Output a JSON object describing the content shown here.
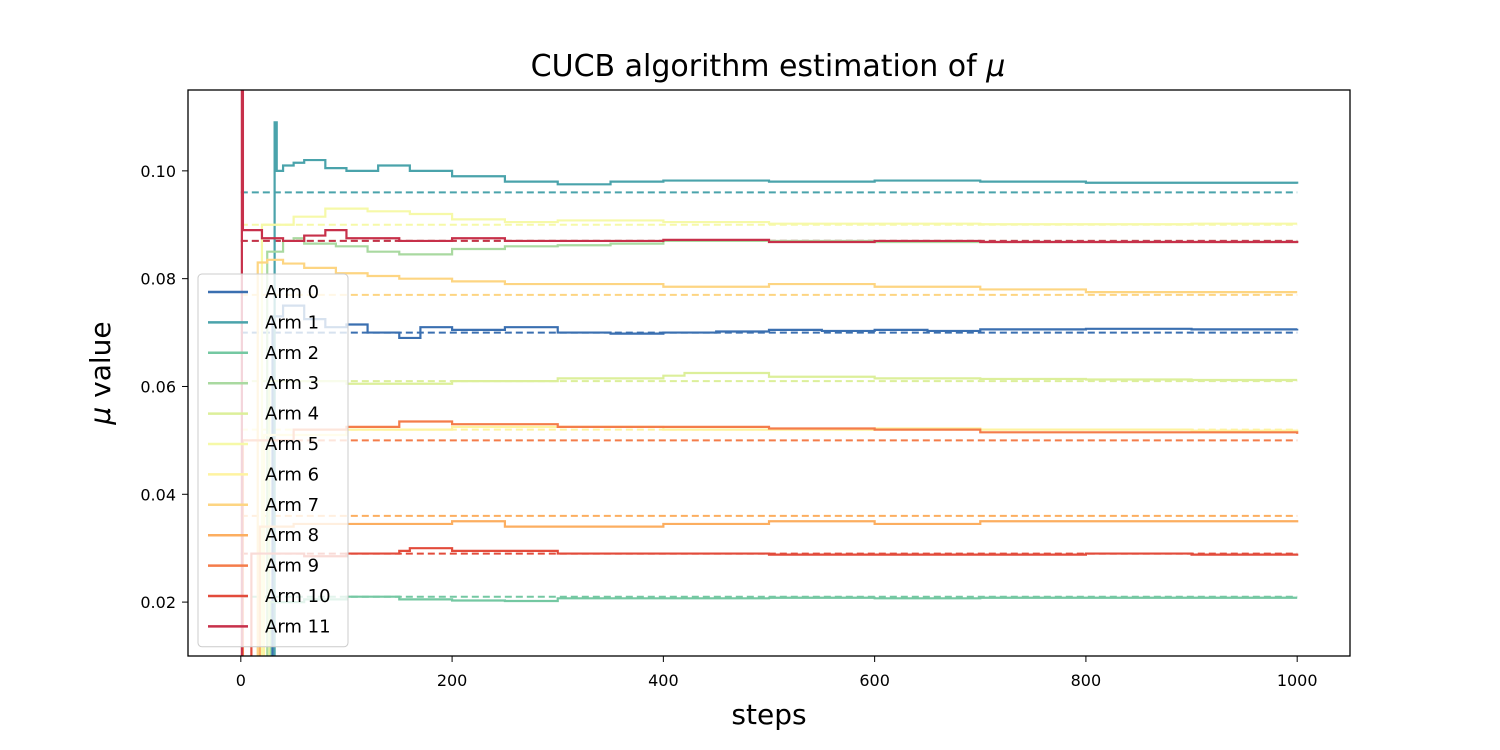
{
  "chart_data": {
    "type": "line",
    "title_prefix": "CUCB algorithm estimation of ",
    "title_symbol": "μ",
    "xlabel": "steps",
    "ylabel_symbol": "μ",
    "ylabel_text": " value",
    "xlim": [
      -50,
      1050
    ],
    "ylim": [
      0.01,
      0.115
    ],
    "xticks": [
      0,
      200,
      400,
      600,
      800,
      1000
    ],
    "yticks": [
      0.02,
      0.04,
      0.06,
      0.08,
      0.1
    ],
    "ytick_labels": [
      "0.02",
      "0.04",
      "0.06",
      "0.08",
      "0.10"
    ],
    "grid": false,
    "legend_position": "lower-left",
    "series": [
      {
        "name": "Arm 0",
        "color": "#3a6fb0",
        "true_mu": 0.07,
        "first_step": 30,
        "points": [
          [
            30,
            0.073
          ],
          [
            40,
            0.075
          ],
          [
            60,
            0.0725
          ],
          [
            80,
            0.071
          ],
          [
            100,
            0.0715
          ],
          [
            120,
            0.07
          ],
          [
            150,
            0.069
          ],
          [
            170,
            0.071
          ],
          [
            200,
            0.0705
          ],
          [
            250,
            0.071
          ],
          [
            300,
            0.07
          ],
          [
            350,
            0.0698
          ],
          [
            400,
            0.07
          ],
          [
            450,
            0.0702
          ],
          [
            500,
            0.0705
          ],
          [
            550,
            0.0703
          ],
          [
            600,
            0.0705
          ],
          [
            650,
            0.0703
          ],
          [
            700,
            0.0706
          ],
          [
            800,
            0.0707
          ],
          [
            900,
            0.0706
          ],
          [
            1000,
            0.0707
          ]
        ]
      },
      {
        "name": "Arm 1",
        "color": "#4aa3ab",
        "true_mu": 0.096,
        "first_step": 32,
        "points": [
          [
            32,
            0.109
          ],
          [
            34,
            0.1
          ],
          [
            40,
            0.101
          ],
          [
            50,
            0.1015
          ],
          [
            60,
            0.102
          ],
          [
            80,
            0.1005
          ],
          [
            100,
            0.1
          ],
          [
            130,
            0.101
          ],
          [
            160,
            0.1
          ],
          [
            200,
            0.099
          ],
          [
            250,
            0.098
          ],
          [
            300,
            0.0975
          ],
          [
            350,
            0.098
          ],
          [
            400,
            0.0982
          ],
          [
            500,
            0.098
          ],
          [
            600,
            0.0982
          ],
          [
            700,
            0.098
          ],
          [
            800,
            0.0978
          ],
          [
            900,
            0.0978
          ],
          [
            1000,
            0.0976
          ]
        ]
      },
      {
        "name": "Arm 2",
        "color": "#74c8a2",
        "true_mu": 0.021,
        "first_step": 28,
        "points": [
          [
            28,
            0.02
          ],
          [
            60,
            0.0205
          ],
          [
            100,
            0.021
          ],
          [
            150,
            0.0205
          ],
          [
            200,
            0.0203
          ],
          [
            250,
            0.0202
          ],
          [
            300,
            0.0207
          ],
          [
            400,
            0.0207
          ],
          [
            500,
            0.0208
          ],
          [
            600,
            0.0207
          ],
          [
            700,
            0.0208
          ],
          [
            800,
            0.0208
          ],
          [
            900,
            0.0208
          ],
          [
            1000,
            0.0208
          ]
        ]
      },
      {
        "name": "Arm 3",
        "color": "#a9d9a0",
        "true_mu": 0.087,
        "first_step": 25,
        "points": [
          [
            25,
            0.085
          ],
          [
            40,
            0.087
          ],
          [
            50,
            0.0875
          ],
          [
            60,
            0.0865
          ],
          [
            90,
            0.086
          ],
          [
            120,
            0.085
          ],
          [
            150,
            0.0845
          ],
          [
            200,
            0.0855
          ],
          [
            250,
            0.086
          ],
          [
            300,
            0.0862
          ],
          [
            350,
            0.0865
          ],
          [
            400,
            0.087
          ],
          [
            500,
            0.087
          ],
          [
            600,
            0.0868
          ],
          [
            700,
            0.0868
          ],
          [
            800,
            0.0868
          ],
          [
            900,
            0.0868
          ],
          [
            1000,
            0.0867
          ]
        ]
      },
      {
        "name": "Arm 4",
        "color": "#dcef9a",
        "true_mu": 0.061,
        "first_step": 27,
        "points": [
          [
            27,
            0.061
          ],
          [
            100,
            0.0605
          ],
          [
            200,
            0.061
          ],
          [
            300,
            0.0615
          ],
          [
            400,
            0.062
          ],
          [
            420,
            0.0625
          ],
          [
            500,
            0.0618
          ],
          [
            600,
            0.0615
          ],
          [
            700,
            0.0614
          ],
          [
            800,
            0.0613
          ],
          [
            900,
            0.0612
          ],
          [
            1000,
            0.0612
          ]
        ]
      },
      {
        "name": "Arm 5",
        "color": "#f6f9a8",
        "true_mu": 0.09,
        "first_step": 20,
        "points": [
          [
            20,
            0.09
          ],
          [
            50,
            0.0915
          ],
          [
            80,
            0.093
          ],
          [
            120,
            0.0925
          ],
          [
            160,
            0.092
          ],
          [
            200,
            0.091
          ],
          [
            250,
            0.0905
          ],
          [
            300,
            0.0908
          ],
          [
            400,
            0.0905
          ],
          [
            500,
            0.0902
          ],
          [
            600,
            0.0902
          ],
          [
            700,
            0.0901
          ],
          [
            800,
            0.0901
          ],
          [
            900,
            0.0902
          ],
          [
            1000,
            0.0902
          ]
        ]
      },
      {
        "name": "Arm 6",
        "color": "#fef3a0",
        "true_mu": 0.052,
        "first_step": 22,
        "points": [
          [
            22,
            0.051
          ],
          [
            100,
            0.052
          ],
          [
            200,
            0.0525
          ],
          [
            300,
            0.0525
          ],
          [
            400,
            0.052
          ],
          [
            500,
            0.052
          ],
          [
            600,
            0.0522
          ],
          [
            700,
            0.052
          ],
          [
            800,
            0.052
          ],
          [
            900,
            0.0518
          ],
          [
            1000,
            0.052
          ]
        ]
      },
      {
        "name": "Arm 7",
        "color": "#fdd582",
        "true_mu": 0.077,
        "first_step": 16,
        "points": [
          [
            16,
            0.083
          ],
          [
            25,
            0.0835
          ],
          [
            40,
            0.0828
          ],
          [
            60,
            0.082
          ],
          [
            90,
            0.081
          ],
          [
            120,
            0.0805
          ],
          [
            150,
            0.08
          ],
          [
            200,
            0.0795
          ],
          [
            250,
            0.079
          ],
          [
            300,
            0.079
          ],
          [
            400,
            0.0785
          ],
          [
            500,
            0.079
          ],
          [
            600,
            0.0785
          ],
          [
            700,
            0.078
          ],
          [
            800,
            0.0775
          ],
          [
            900,
            0.0775
          ],
          [
            1000,
            0.0775
          ]
        ]
      },
      {
        "name": "Arm 8",
        "color": "#fcae60",
        "true_mu": 0.036,
        "first_step": 18,
        "points": [
          [
            18,
            0.034
          ],
          [
            50,
            0.0345
          ],
          [
            100,
            0.0345
          ],
          [
            150,
            0.0345
          ],
          [
            200,
            0.035
          ],
          [
            250,
            0.034
          ],
          [
            300,
            0.034
          ],
          [
            400,
            0.0345
          ],
          [
            500,
            0.035
          ],
          [
            600,
            0.0345
          ],
          [
            700,
            0.035
          ],
          [
            800,
            0.035
          ],
          [
            900,
            0.035
          ],
          [
            1000,
            0.0352
          ]
        ]
      },
      {
        "name": "Arm 9",
        "color": "#f47c4a",
        "true_mu": 0.05,
        "first_step": 2,
        "points": [
          [
            2,
            0.05
          ],
          [
            50,
            0.052
          ],
          [
            100,
            0.0525
          ],
          [
            150,
            0.0535
          ],
          [
            200,
            0.053
          ],
          [
            300,
            0.0525
          ],
          [
            400,
            0.0525
          ],
          [
            500,
            0.0522
          ],
          [
            600,
            0.052
          ],
          [
            700,
            0.0515
          ],
          [
            800,
            0.0515
          ],
          [
            900,
            0.0515
          ],
          [
            1000,
            0.0512
          ]
        ]
      },
      {
        "name": "Arm 10",
        "color": "#e24b3b",
        "true_mu": 0.029,
        "first_step": 10,
        "points": [
          [
            10,
            0.029
          ],
          [
            60,
            0.0285
          ],
          [
            100,
            0.029
          ],
          [
            150,
            0.0295
          ],
          [
            160,
            0.03
          ],
          [
            200,
            0.0295
          ],
          [
            300,
            0.029
          ],
          [
            400,
            0.029
          ],
          [
            500,
            0.0288
          ],
          [
            600,
            0.0288
          ],
          [
            700,
            0.0288
          ],
          [
            800,
            0.029
          ],
          [
            900,
            0.0288
          ],
          [
            1000,
            0.029
          ]
        ]
      },
      {
        "name": "Arm 11",
        "color": "#c7304a",
        "true_mu": 0.087,
        "first_step": 1,
        "points": [
          [
            1,
            0.115
          ],
          [
            2,
            0.089
          ],
          [
            20,
            0.0875
          ],
          [
            40,
            0.087
          ],
          [
            60,
            0.088
          ],
          [
            80,
            0.089
          ],
          [
            100,
            0.0875
          ],
          [
            150,
            0.087
          ],
          [
            200,
            0.0875
          ],
          [
            250,
            0.087
          ],
          [
            300,
            0.087
          ],
          [
            400,
            0.0872
          ],
          [
            500,
            0.0868
          ],
          [
            600,
            0.087
          ],
          [
            700,
            0.0868
          ],
          [
            800,
            0.0868
          ],
          [
            900,
            0.0868
          ],
          [
            1000,
            0.0866
          ]
        ]
      }
    ]
  }
}
